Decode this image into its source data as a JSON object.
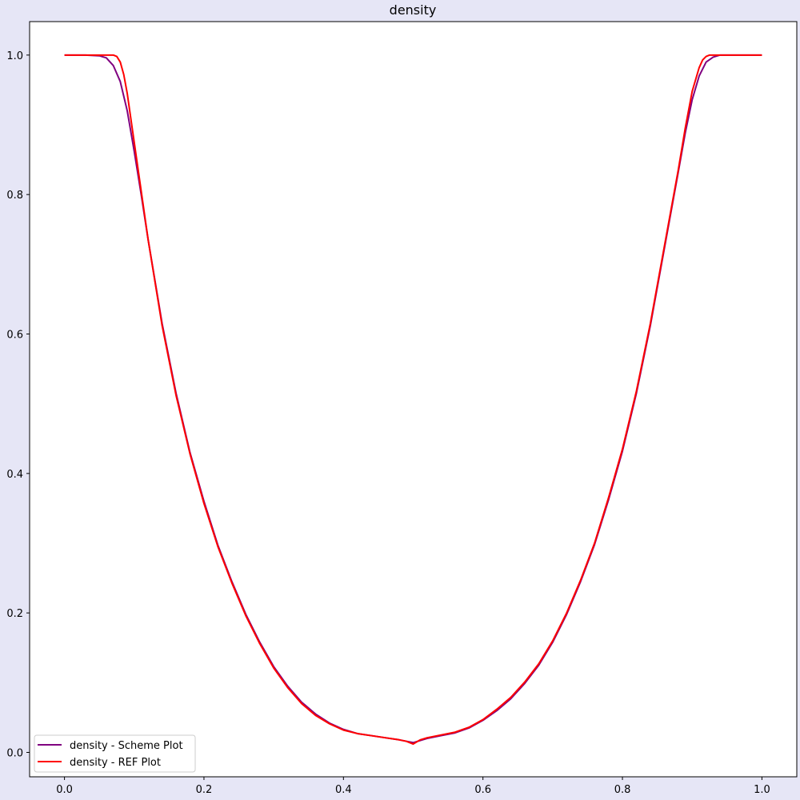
{
  "colors": {
    "figure_background": "#e6e6f6",
    "plot_background": "#ffffff"
  },
  "chart_data": {
    "type": "line",
    "title": "density",
    "xlabel": "",
    "ylabel": "",
    "xlim": [
      -0.05,
      1.05
    ],
    "ylim": [
      -0.035,
      1.048
    ],
    "xticks": [
      "0.0",
      "0.2",
      "0.4",
      "0.6",
      "0.8",
      "1.0"
    ],
    "yticks": [
      "0.0",
      "0.2",
      "0.4",
      "0.6",
      "0.8",
      "1.0"
    ],
    "grid": false,
    "legend_position": "lower-left",
    "series": [
      {
        "name": "density - Scheme Plot",
        "color": "#800080",
        "x": [
          0.0,
          0.03,
          0.05,
          0.06,
          0.07,
          0.08,
          0.09,
          0.1,
          0.11,
          0.12,
          0.14,
          0.16,
          0.18,
          0.2,
          0.22,
          0.24,
          0.26,
          0.28,
          0.3,
          0.32,
          0.34,
          0.36,
          0.38,
          0.4,
          0.42,
          0.44,
          0.46,
          0.48,
          0.49,
          0.5,
          0.51,
          0.52,
          0.54,
          0.56,
          0.58,
          0.6,
          0.62,
          0.64,
          0.66,
          0.68,
          0.7,
          0.72,
          0.74,
          0.76,
          0.78,
          0.8,
          0.82,
          0.84,
          0.86,
          0.88,
          0.89,
          0.9,
          0.91,
          0.92,
          0.93,
          0.94,
          0.95,
          0.97,
          1.0
        ],
        "y": [
          1.0,
          1.0,
          0.999,
          0.996,
          0.985,
          0.962,
          0.92,
          0.862,
          0.8,
          0.735,
          0.615,
          0.515,
          0.43,
          0.36,
          0.297,
          0.245,
          0.198,
          0.158,
          0.123,
          0.095,
          0.072,
          0.055,
          0.042,
          0.033,
          0.027,
          0.024,
          0.021,
          0.018,
          0.016,
          0.014,
          0.017,
          0.02,
          0.024,
          0.028,
          0.035,
          0.046,
          0.06,
          0.077,
          0.099,
          0.125,
          0.158,
          0.198,
          0.245,
          0.298,
          0.362,
          0.432,
          0.515,
          0.612,
          0.722,
          0.832,
          0.888,
          0.936,
          0.97,
          0.99,
          0.997,
          1.0,
          1.0,
          1.0,
          1.0
        ]
      },
      {
        "name": "density - REF Plot",
        "color": "#ff0000",
        "x": [
          0.0,
          0.03,
          0.06,
          0.07,
          0.075,
          0.08,
          0.085,
          0.09,
          0.1,
          0.11,
          0.12,
          0.14,
          0.16,
          0.18,
          0.2,
          0.22,
          0.24,
          0.26,
          0.28,
          0.3,
          0.32,
          0.34,
          0.36,
          0.38,
          0.4,
          0.42,
          0.44,
          0.46,
          0.48,
          0.49,
          0.5,
          0.51,
          0.52,
          0.54,
          0.56,
          0.58,
          0.6,
          0.62,
          0.64,
          0.66,
          0.68,
          0.7,
          0.72,
          0.74,
          0.76,
          0.78,
          0.8,
          0.82,
          0.84,
          0.86,
          0.88,
          0.89,
          0.9,
          0.91,
          0.915,
          0.92,
          0.925,
          0.93,
          0.94,
          0.97,
          1.0
        ],
        "y": [
          1.0,
          1.0,
          1.0,
          1.0,
          0.998,
          0.99,
          0.972,
          0.945,
          0.875,
          0.805,
          0.735,
          0.612,
          0.512,
          0.428,
          0.357,
          0.295,
          0.243,
          0.196,
          0.156,
          0.121,
          0.093,
          0.07,
          0.053,
          0.041,
          0.032,
          0.027,
          0.024,
          0.021,
          0.018,
          0.016,
          0.012,
          0.018,
          0.021,
          0.025,
          0.029,
          0.036,
          0.047,
          0.062,
          0.079,
          0.101,
          0.127,
          0.16,
          0.2,
          0.247,
          0.3,
          0.365,
          0.435,
          0.518,
          0.615,
          0.725,
          0.835,
          0.895,
          0.948,
          0.982,
          0.993,
          0.998,
          1.0,
          1.0,
          1.0,
          1.0,
          1.0
        ]
      }
    ]
  }
}
